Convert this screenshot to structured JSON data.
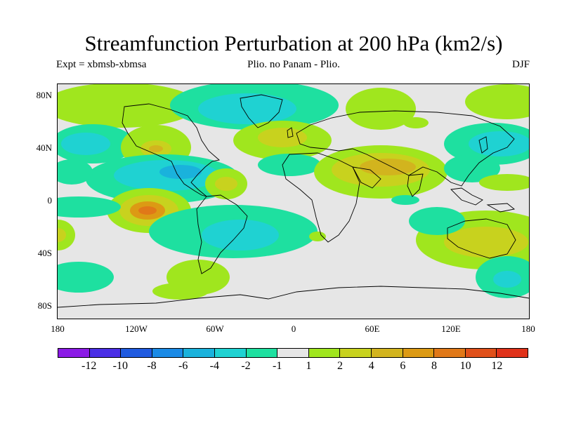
{
  "title": "Streamfunction Perturbation at 200 hPa (km2/s)",
  "subtitle_left": "Expt = xbmsb-xbmsa",
  "subtitle_center": "Plio. no Panam - Plio.",
  "subtitle_right": "DJF",
  "lat_ticks": [
    "80N",
    "40N",
    "0",
    "40S",
    "80S"
  ],
  "lon_ticks": [
    "180",
    "120W",
    "60W",
    "0",
    "60E",
    "120E",
    "180"
  ],
  "colorbar": {
    "colors": [
      "#8b1ae6",
      "#4a2ee6",
      "#1f5ae0",
      "#1a8ae6",
      "#1ab2dc",
      "#1fd2d2",
      "#1ee0a0",
      "#e6e6e6",
      "#a0e61e",
      "#c8d21e",
      "#d2b41e",
      "#dc9a14",
      "#e07818",
      "#e0501a",
      "#e0321a"
    ],
    "labels": [
      "-12",
      "-10",
      "-8",
      "-6",
      "-4",
      "-2",
      "-1",
      "1",
      "2",
      "4",
      "6",
      "8",
      "10",
      "12"
    ]
  }
}
